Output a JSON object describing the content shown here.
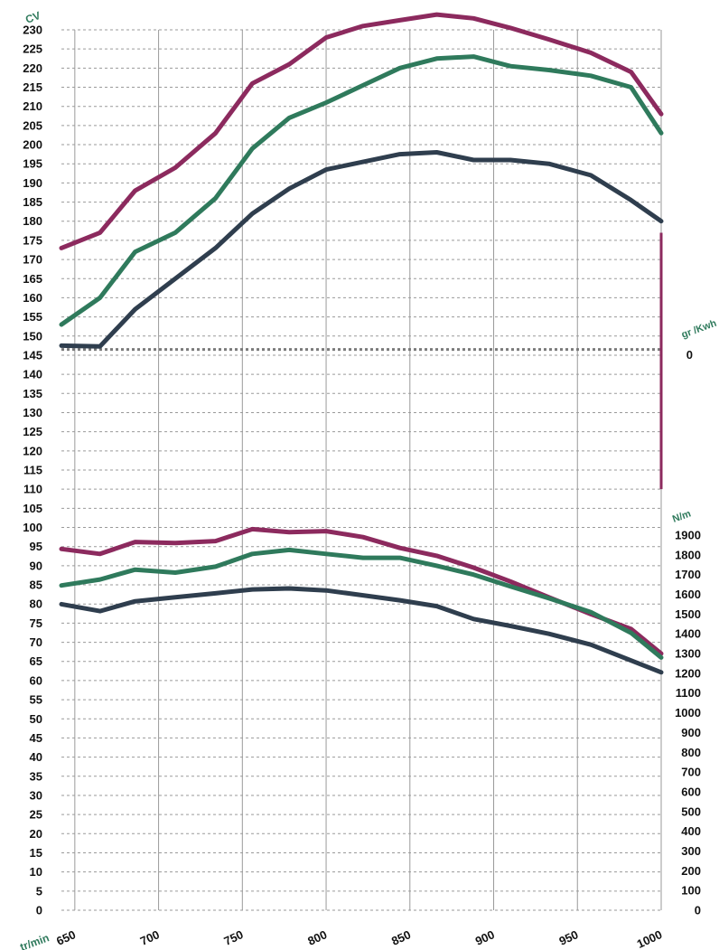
{
  "chart_data": {
    "type": "line",
    "x": [
      642,
      665,
      686,
      710,
      734,
      756,
      778,
      800,
      822,
      844,
      866,
      888,
      910,
      933,
      958,
      982,
      1000
    ],
    "xlabel": "tr/min",
    "xticks": [
      650,
      700,
      750,
      800,
      850,
      900,
      950,
      1000
    ],
    "xlim": [
      642,
      1000
    ],
    "left_axis": {
      "label": "CV",
      "ylim": [
        0,
        230
      ],
      "ticks": [
        0,
        5,
        10,
        15,
        20,
        25,
        30,
        35,
        40,
        45,
        50,
        55,
        60,
        65,
        70,
        75,
        80,
        85,
        90,
        95,
        100,
        105,
        110,
        115,
        120,
        125,
        130,
        135,
        140,
        145,
        150,
        155,
        160,
        165,
        170,
        175,
        180,
        185,
        190,
        195,
        200,
        205,
        210,
        215,
        220,
        225,
        230
      ]
    },
    "right_axis_torque": {
      "label": "N/m",
      "ticks": [
        0,
        100,
        200,
        300,
        400,
        500,
        600,
        700,
        800,
        900,
        1000,
        1100,
        1200,
        1300,
        1400,
        1500,
        1600,
        1700,
        1800,
        1900
      ]
    },
    "right_axis_consumption": {
      "label": "gr /Kwh",
      "ticks": [
        0
      ]
    },
    "grid": true,
    "series": [
      {
        "group": "power",
        "color": "#8c2a5e",
        "values": [
          173,
          177,
          188,
          194,
          203,
          216,
          221,
          228,
          231,
          232.5,
          234,
          233,
          230.5,
          227.5,
          224,
          219,
          208
        ]
      },
      {
        "group": "power",
        "color": "#2f7a5c",
        "values": [
          153,
          160,
          172,
          177,
          186,
          199,
          207,
          211,
          215.5,
          220,
          222.5,
          223,
          220.5,
          219.5,
          218,
          215,
          203
        ]
      },
      {
        "group": "power",
        "color": "#2f3e4e",
        "values": [
          147.5,
          147.3,
          157,
          165,
          173,
          182,
          188.5,
          193.5,
          195.5,
          197.5,
          198,
          196,
          196,
          195,
          192,
          185.5,
          180
        ]
      },
      {
        "group": "torque",
        "color": "#8c2a5e",
        "values": [
          1830,
          1805,
          1865,
          1860,
          1870,
          1930,
          1915,
          1920,
          1890,
          1835,
          1795,
          1735,
          1665,
          1585,
          1500,
          1425,
          1300
        ]
      },
      {
        "group": "torque",
        "color": "#2f7a5c",
        "values": [
          1645,
          1675,
          1725,
          1710,
          1740,
          1805,
          1825,
          1805,
          1785,
          1785,
          1745,
          1700,
          1640,
          1580,
          1510,
          1405,
          1280
        ]
      },
      {
        "group": "torque",
        "color": "#2f3e4e",
        "values": [
          1550,
          1515,
          1565,
          1585,
          1605,
          1625,
          1630,
          1620,
          1595,
          1570,
          1540,
          1475,
          1440,
          1400,
          1345,
          1265,
          1205
        ]
      }
    ],
    "reference_line": {
      "left_axis_value": 146.5,
      "style": "dotted"
    },
    "consumption_bar": {
      "color": "#8c2a5e",
      "from": 110,
      "to": 177
    }
  }
}
